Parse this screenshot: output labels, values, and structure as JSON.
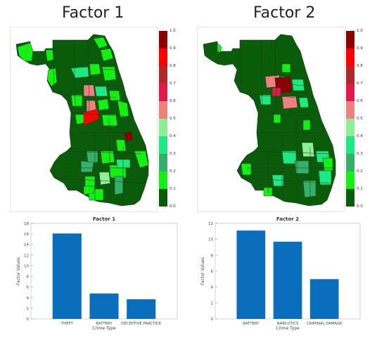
{
  "headings": {
    "left": "Factor 1",
    "right": "Factor 2"
  },
  "colorbar": {
    "ticks": [
      "0.0",
      "0.1",
      "0.2",
      "0.3",
      "0.4",
      "0.5",
      "0.6",
      "0.7",
      "0.8",
      "0.9",
      "1.0"
    ],
    "colors": [
      "#0a5c0a",
      "#14f014",
      "#35b06a",
      "#1ee882",
      "#8fef97",
      "#f07f7f",
      "#e01a4a",
      "#b02828",
      "#ff0000",
      "#8b0000"
    ]
  },
  "maps": {
    "left": {
      "colors": [
        "#0a5c0a",
        "#14f014",
        "#1ee882",
        "#f07f7f",
        "#ff0000",
        "#8b0000",
        "#35b06a",
        "#8fef97"
      ]
    },
    "right": {
      "colors": [
        "#0a5c0a",
        "#14f014",
        "#1ee882",
        "#f07f7f",
        "#8b0000",
        "#e01a4a",
        "#35b06a",
        "#8fef97"
      ]
    }
  },
  "chart_data": [
    {
      "type": "bar",
      "title": "Factor 1",
      "categories": [
        "THEFT",
        "BATTERY",
        "DECEPTIVE PRACTICE"
      ],
      "values": [
        16.1,
        4.8,
        3.7
      ],
      "xlabel": "Crime Type",
      "ylabel": "Factor Values",
      "ylim": [
        0,
        18
      ],
      "yticks": [
        0,
        2,
        4,
        6,
        8,
        10,
        12,
        14,
        16,
        18
      ],
      "grid": false,
      "color": "#0a6ebd"
    },
    {
      "type": "bar",
      "title": "Factor 2",
      "categories": [
        "BATTERY",
        "NARCOTICS",
        "CRIMINAL DAMAGE"
      ],
      "values": [
        11.1,
        9.7,
        5.0
      ],
      "xlabel": "Crime Type",
      "ylabel": "Factor Values",
      "ylim": [
        0,
        12
      ],
      "yticks": [
        0,
        2,
        4,
        6,
        8,
        10,
        12
      ],
      "grid": false,
      "color": "#0a6ebd"
    }
  ]
}
